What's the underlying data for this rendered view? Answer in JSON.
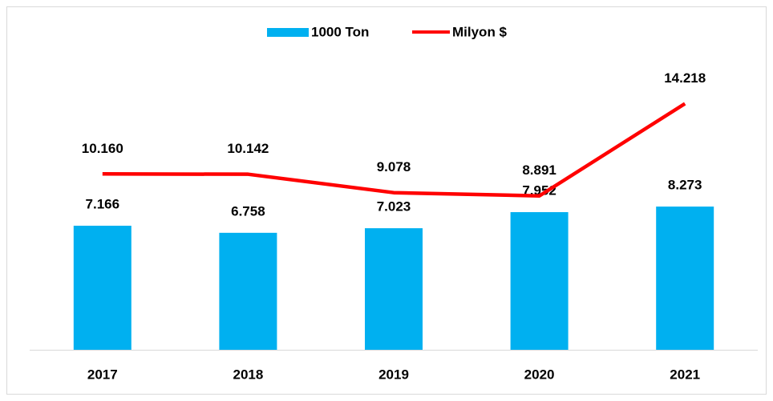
{
  "chart_data": {
    "type": "bar-line",
    "categories": [
      "2017",
      "2018",
      "2019",
      "2020",
      "2021"
    ],
    "ylim": [
      0,
      16000
    ],
    "series": [
      {
        "name": "1000 Ton",
        "type": "bar",
        "color": "#00b0f0",
        "values": [
          7166,
          6758,
          7023,
          7952,
          8273
        ],
        "value_labels": [
          "7.166",
          "6.758",
          "7.023",
          "7.952",
          "8.273"
        ]
      },
      {
        "name": "Milyon $",
        "type": "line",
        "color": "#ff0000",
        "values": [
          10160,
          10142,
          9078,
          8891,
          14218
        ],
        "value_labels": [
          "10.160",
          "10.142",
          "9.078",
          "8.891",
          "14.218"
        ]
      }
    ]
  }
}
